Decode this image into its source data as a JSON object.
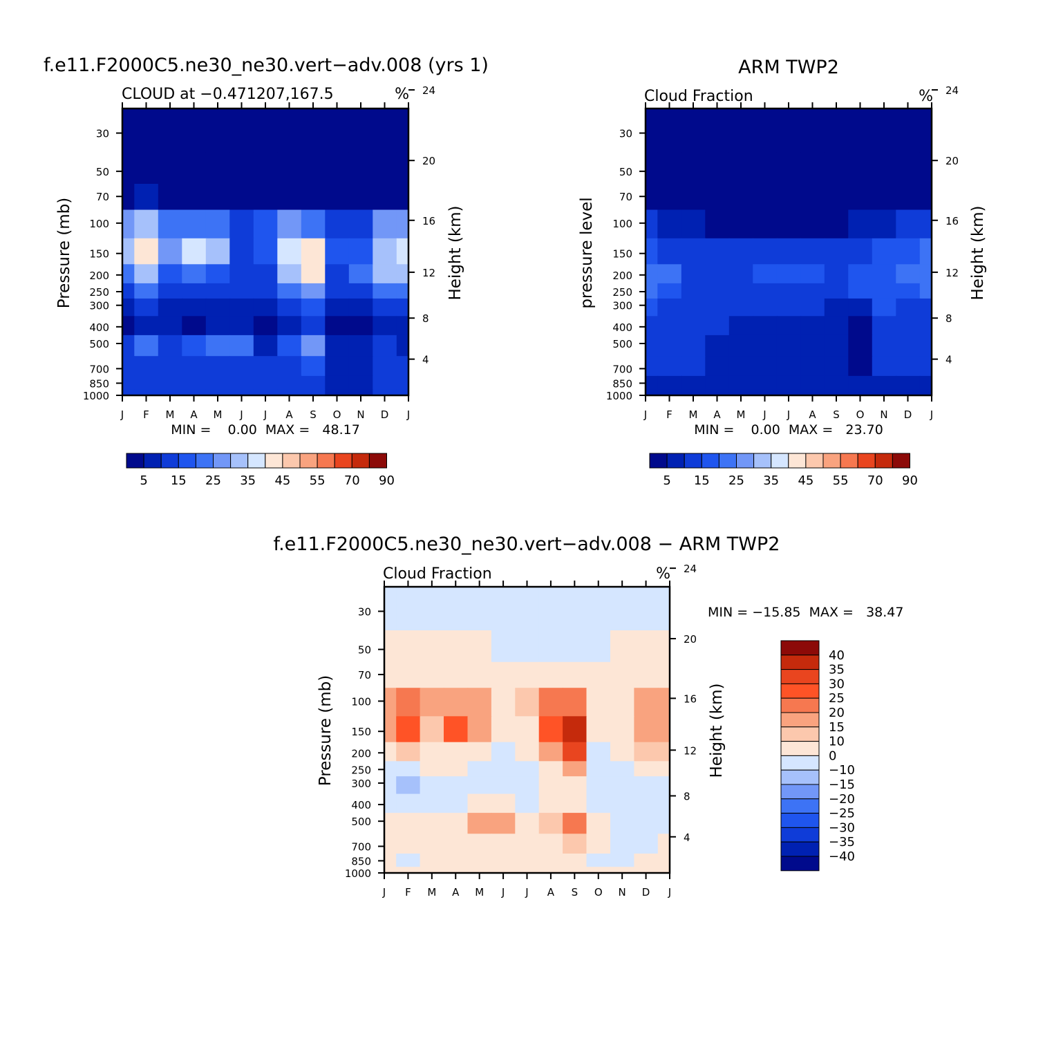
{
  "months": [
    "J",
    "F",
    "M",
    "A",
    "M",
    "J",
    "J",
    "A",
    "S",
    "O",
    "N",
    "D",
    "J"
  ],
  "pressure_ticks": [
    "30",
    "50",
    "70",
    "100",
    "150",
    "200",
    "250",
    "300",
    "400",
    "500",
    "700",
    "850",
    "1000"
  ],
  "height_ticks": [
    "24",
    "20",
    "16",
    "12",
    "8",
    "4"
  ],
  "cloud_scale": {
    "colors": [
      "#000a8c",
      "#0021b2",
      "#0f3cd8",
      "#1f55ee",
      "#3d73f5",
      "#7297f7",
      "#a6c1fb",
      "#d5e6ff",
      "#fde6d6",
      "#fcc8ad",
      "#f9a37f",
      "#f67850",
      "#e9451f",
      "#c52a0c",
      "#8c0a08"
    ],
    "labels": [
      "5",
      "15",
      "25",
      "35",
      "45",
      "55",
      "70",
      "90"
    ]
  },
  "diff_scale": {
    "colors": [
      "#8c0a08",
      "#c52a0c",
      "#e9451f",
      "#ff5326",
      "#f67850",
      "#f9a37f",
      "#fcc8ad",
      "#fde6d6",
      "#d5e6ff",
      "#a6c1fb",
      "#7297f7",
      "#3d73f5",
      "#1f55ee",
      "#0f3cd8",
      "#0021b2",
      "#000a8c"
    ],
    "labels": [
      "40",
      "35",
      "30",
      "25",
      "20",
      "15",
      "10",
      "0",
      "−10",
      "−15",
      "−20",
      "−25",
      "−30",
      "−35",
      "−40"
    ]
  },
  "chart_data": [
    {
      "type": "heatmap",
      "title": "f.e11.F2000C5.ne30_ne30.vert−adv.008 (yrs 1)",
      "subtitle_left": "CLOUD at −0.471207,167.5",
      "units": "%",
      "ylabel": "Pressure (mb)",
      "ylabel_right": "Height (km)",
      "stats": "MIN =    0.00  MAX =   48.17",
      "min": 0.0,
      "max": 48.17,
      "months": [
        "J",
        "F",
        "M",
        "A",
        "M",
        "J",
        "J",
        "A",
        "S",
        "O",
        "N",
        "D",
        "J"
      ],
      "levels": [
        30,
        50,
        70,
        100,
        150,
        200,
        250,
        300,
        400,
        500,
        700,
        850,
        1000
      ],
      "values": [
        [
          0,
          0,
          0,
          0,
          0,
          0,
          0,
          0,
          0,
          0,
          0,
          0,
          0
        ],
        [
          0,
          0,
          0,
          0,
          0,
          0,
          0,
          0,
          0,
          0,
          0,
          0,
          0
        ],
        [
          4,
          5,
          4,
          3,
          3,
          2,
          2,
          3,
          3,
          3,
          3,
          4,
          4
        ],
        [
          26,
          34,
          22,
          24,
          21,
          12,
          15,
          25,
          24,
          14,
          12,
          26,
          28
        ],
        [
          32,
          42,
          26,
          35,
          30,
          14,
          18,
          38,
          42,
          16,
          18,
          34,
          36
        ],
        [
          22,
          30,
          18,
          22,
          16,
          12,
          14,
          30,
          44,
          14,
          20,
          30,
          32
        ],
        [
          12,
          20,
          13,
          14,
          12,
          10,
          10,
          20,
          28,
          10,
          12,
          22,
          22
        ],
        [
          6,
          12,
          8,
          6,
          9,
          9,
          5,
          12,
          16,
          7,
          9,
          14,
          10
        ],
        [
          3,
          7,
          7,
          3,
          8,
          8,
          4,
          8,
          14,
          4,
          4,
          8,
          5
        ],
        [
          14,
          24,
          12,
          15,
          22,
          24,
          8,
          17,
          26,
          8,
          6,
          10,
          9
        ],
        [
          12,
          14,
          10,
          11,
          13,
          12,
          11,
          14,
          16,
          8,
          6,
          10,
          10
        ],
        [
          11,
          12,
          10,
          11,
          11,
          11,
          10,
          11,
          12,
          7,
          5,
          10,
          10
        ],
        [
          10,
          10,
          10,
          10,
          10,
          10,
          10,
          10,
          10,
          9,
          9,
          10,
          10
        ]
      ]
    },
    {
      "type": "heatmap",
      "title": "ARM TWP2",
      "subtitle_left": "Cloud Fraction",
      "units": "%",
      "ylabel": "pressure level",
      "ylabel_right": "Height (km)",
      "stats": "MIN =    0.00  MAX =   23.70",
      "min": 0.0,
      "max": 23.7,
      "months": [
        "J",
        "F",
        "M",
        "A",
        "M",
        "J",
        "J",
        "A",
        "S",
        "O",
        "N",
        "D",
        "J"
      ],
      "levels": [
        30,
        50,
        70,
        100,
        150,
        200,
        250,
        300,
        400,
        500,
        700,
        850,
        1000
      ],
      "values": [
        [
          0,
          0,
          0,
          0,
          0,
          0,
          0,
          0,
          0,
          0,
          0,
          0,
          0
        ],
        [
          0,
          0,
          0,
          0,
          0,
          0,
          0,
          0,
          0,
          0,
          0,
          0,
          0
        ],
        [
          3,
          2,
          2,
          2,
          1,
          1,
          1,
          1,
          1,
          1,
          2,
          2,
          4
        ],
        [
          10,
          9,
          5,
          4,
          3,
          3,
          4,
          4,
          3,
          5,
          8,
          10,
          12
        ],
        [
          16,
          14,
          12,
          10,
          12,
          13,
          12,
          14,
          11,
          14,
          16,
          18,
          20
        ],
        [
          22,
          20,
          14,
          13,
          14,
          17,
          15,
          15,
          14,
          18,
          18,
          20,
          22
        ],
        [
          20,
          18,
          13,
          13,
          13,
          14,
          13,
          13,
          14,
          16,
          18,
          19,
          21
        ],
        [
          16,
          14,
          12,
          12,
          12,
          11,
          11,
          11,
          9,
          8,
          16,
          14,
          14
        ],
        [
          13,
          13,
          12,
          10,
          9,
          9,
          9,
          8,
          6,
          4,
          14,
          12,
          12
        ],
        [
          12,
          12,
          11,
          9,
          7,
          7,
          8,
          7,
          5,
          3,
          12,
          11,
          11
        ],
        [
          11,
          11,
          10,
          8,
          6,
          7,
          6,
          7,
          6,
          4,
          10,
          11,
          10
        ],
        [
          9,
          9,
          9,
          8,
          7,
          7,
          7,
          7,
          7,
          8,
          8,
          9,
          9
        ],
        [
          6,
          6,
          6,
          6,
          6,
          6,
          6,
          6,
          6,
          6,
          6,
          6,
          6
        ]
      ]
    },
    {
      "type": "heatmap",
      "title": "f.e11.F2000C5.ne30_ne30.vert−adv.008 − ARM TWP2",
      "subtitle_left": "Cloud Fraction",
      "units": "%",
      "ylabel": "Pressure (mb)",
      "ylabel_right": "Height (km)",
      "stats": "MIN = −15.85  MAX =   38.47",
      "min": -15.85,
      "max": 38.47,
      "months": [
        "J",
        "F",
        "M",
        "A",
        "M",
        "J",
        "J",
        "A",
        "S",
        "O",
        "N",
        "D",
        "J"
      ],
      "levels": [
        30,
        50,
        70,
        100,
        150,
        200,
        250,
        300,
        400,
        500,
        700,
        850,
        1000
      ],
      "values": [
        [
          -2,
          -2,
          -2,
          -2,
          -2,
          -2,
          -2,
          -2,
          -2,
          -2,
          -2,
          -2,
          -2
        ],
        [
          1,
          2,
          2,
          2,
          1,
          -1,
          -1,
          -1,
          -1,
          -1,
          1,
          2,
          1
        ],
        [
          2,
          4,
          3,
          3,
          4,
          2,
          1,
          2,
          3,
          2,
          4,
          4,
          2
        ],
        [
          16,
          24,
          16,
          18,
          15,
          8,
          10,
          20,
          20,
          8,
          4,
          16,
          18
        ],
        [
          16,
          28,
          14,
          26,
          18,
          2,
          6,
          28,
          38,
          2,
          2,
          16,
          18
        ],
        [
          1,
          10,
          4,
          9,
          2,
          -2,
          0,
          16,
          32,
          -4,
          2,
          12,
          10
        ],
        [
          -8,
          -3,
          0,
          1,
          -1,
          -3,
          -3,
          8,
          18,
          -6,
          -3,
          4,
          1
        ],
        [
          -10,
          -12,
          -4,
          -6,
          -3,
          -2,
          -5,
          1,
          8,
          -2,
          -7,
          -2,
          -4
        ],
        [
          -6,
          -6,
          -5,
          -7,
          0,
          0,
          -5,
          0,
          8,
          -4,
          -10,
          -4,
          -7
        ],
        [
          2,
          4,
          1,
          6,
          15,
          17,
          0,
          10,
          21,
          5,
          -6,
          -1,
          -2
        ],
        [
          1,
          3,
          0,
          3,
          6,
          5,
          5,
          7,
          10,
          4,
          -4,
          -1,
          1
        ],
        [
          2,
          -1,
          1,
          3,
          4,
          4,
          3,
          4,
          5,
          -1,
          -3,
          1,
          1
        ],
        [
          4,
          4,
          4,
          4,
          4,
          4,
          4,
          4,
          4,
          3,
          3,
          4,
          4
        ]
      ]
    }
  ]
}
